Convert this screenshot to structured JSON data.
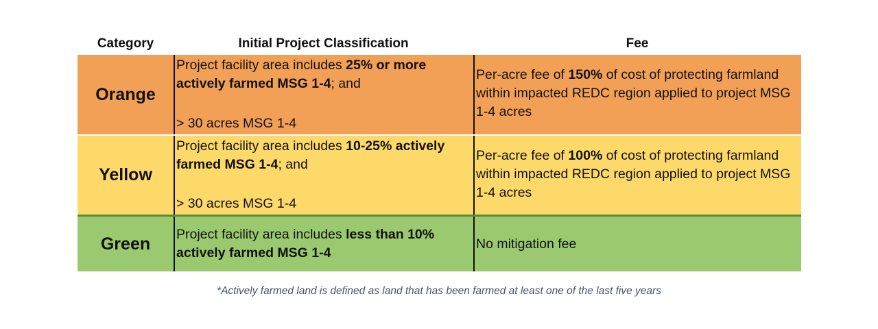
{
  "headers": {
    "category": "Category",
    "initial": "Initial Project Classification",
    "fee": "Fee"
  },
  "rows": {
    "orange": {
      "category": "Orange",
      "color": "#f2a055",
      "initial_pre": "Project facility area includes ",
      "initial_bold": "25% or more actively farmed MSG 1-4",
      "initial_post": "; and",
      "initial_acres": "> 30 acres MSG 1-4",
      "fee_pre": "Per-acre fee of ",
      "fee_bold": "150%",
      "fee_post": " of cost of protecting farmland within impacted REDC region applied to project MSG 1-4 acres"
    },
    "yellow": {
      "category": "Yellow",
      "color": "#fdd96a",
      "initial_pre": "Project facility area includes ",
      "initial_bold": "10-25% actively farmed MSG 1-4",
      "initial_post": "; and",
      "initial_acres": "> 30 acres MSG 1-4",
      "fee_pre": "Per-acre fee of ",
      "fee_bold": "100%",
      "fee_post": " of cost of protecting farmland within impacted REDC region applied to project MSG 1-4 acres"
    },
    "green": {
      "category": "Green",
      "color": "#9bc96f",
      "initial_pre": "Project facility area includes ",
      "initial_bold": "less than 10% actively farmed MSG 1-4",
      "fee": "No mitigation fee"
    }
  },
  "footnote": "*Actively farmed land is defined as land that has been farmed at least one of the last five years"
}
